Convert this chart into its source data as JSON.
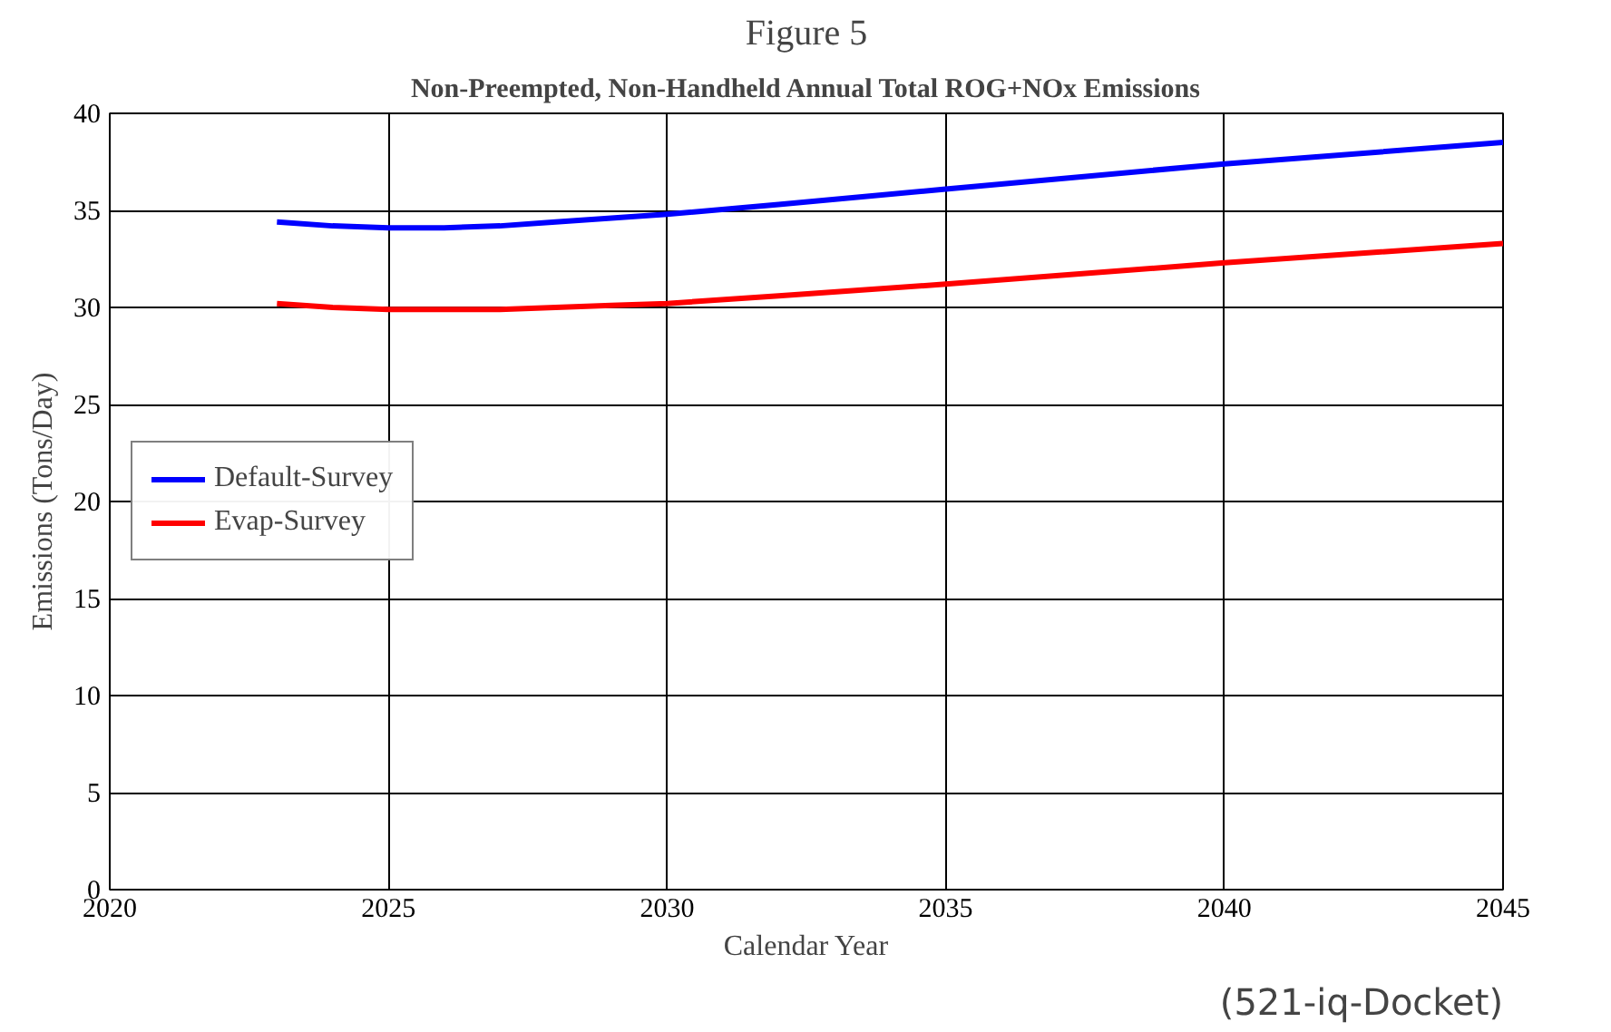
{
  "chart_data": {
    "type": "line",
    "title": "Non-Preempted, Non-Handheld Annual Total ROG+NOx Emissions",
    "xlabel": "Calendar Year",
    "ylabel": "Emissions (Tons/Day)",
    "annotations": [
      "Figure 5",
      "(521-iq-Docket)"
    ],
    "x": [
      2023,
      2024,
      2025,
      2026,
      2027,
      2028,
      2029,
      2030,
      2032,
      2035,
      2040,
      2045
    ],
    "series": [
      {
        "name": "Default-Survey",
        "color": "#0000ff",
        "values": [
          34.4,
          34.2,
          34.1,
          34.1,
          34.2,
          34.4,
          34.6,
          34.8,
          35.3,
          36.1,
          37.4,
          38.5
        ]
      },
      {
        "name": "Evap-Survey",
        "color": "#ff0000",
        "values": [
          30.2,
          30.0,
          29.9,
          29.9,
          29.9,
          30.0,
          30.1,
          30.2,
          30.6,
          31.2,
          32.3,
          33.3
        ]
      }
    ],
    "xlim": [
      2020,
      2045
    ],
    "xticks": [
      2020,
      2025,
      2030,
      2035,
      2040,
      2045
    ],
    "ylim": [
      0,
      40
    ],
    "yticks": [
      0,
      5,
      10,
      15,
      20,
      25,
      30,
      35,
      40
    ],
    "grid": true,
    "legend": "left",
    "line_style": "solid"
  }
}
